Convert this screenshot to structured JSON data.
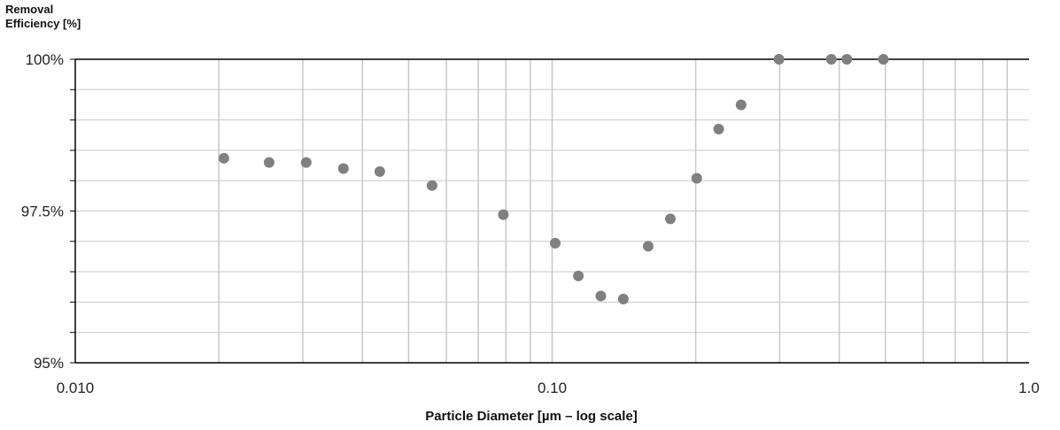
{
  "chart_data": {
    "type": "scatter",
    "title": "",
    "xlabel": "Particle Diameter [µm – log scale]",
    "ylabel": "Removal\nEfficiency [%]",
    "xscale": "log",
    "xlim": [
      0.01,
      1.0
    ],
    "ylim": [
      95,
      100
    ],
    "grid": true,
    "legend": "none",
    "x_tick_labels": [
      "0.010",
      "0.10",
      "1.0"
    ],
    "x_tick_values": [
      0.01,
      0.1,
      1.0
    ],
    "y_tick_labels": [
      "95%",
      "97.5%",
      "100%"
    ],
    "y_tick_values": [
      95,
      97.5,
      100
    ],
    "colors": {
      "points": "#808080",
      "grid": "#c8c8c8",
      "axis": "#000000"
    },
    "series": [
      {
        "x": [
          0.0205,
          0.0255,
          0.0305,
          0.0365,
          0.0435,
          0.056,
          0.079,
          0.1015,
          0.1135,
          0.1265,
          0.141,
          0.159,
          0.177,
          0.201,
          0.2235,
          0.249,
          0.299,
          0.385,
          0.415,
          0.495
        ],
        "y": [
          98.37,
          98.3,
          98.3,
          98.2,
          98.15,
          97.92,
          97.44,
          96.97,
          96.43,
          96.1,
          96.05,
          96.92,
          97.37,
          98.04,
          98.85,
          99.25,
          100,
          100,
          100,
          100
        ]
      }
    ]
  }
}
